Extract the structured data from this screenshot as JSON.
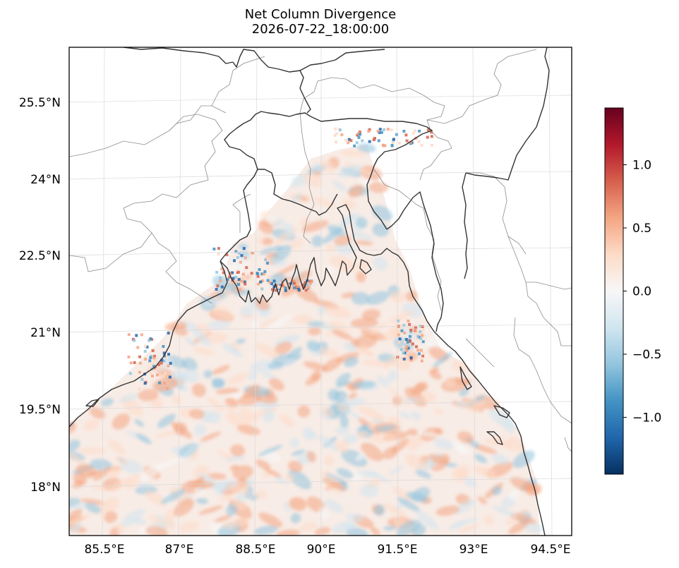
{
  "figure": {
    "title_line1": "Net Column Divergence",
    "title_line2": "2026-07-22_18:00:00"
  },
  "map": {
    "lon_ticks": [
      "85.5°E",
      "87°E",
      "88.5°E",
      "90°E",
      "91.5°E",
      "93°E",
      "94.5°E"
    ],
    "lat_ticks": [
      "25.5°N",
      "24°N",
      "22.5°N",
      "21°N",
      "19.5°N",
      "18°N"
    ],
    "gridlines": true
  },
  "colorbar": {
    "colormap": "RdBu_r",
    "range": [
      -1.45,
      1.45
    ],
    "ticks": [
      "1.0",
      "0.5",
      "0.0",
      "−0.5",
      "−1.0"
    ],
    "colors": [
      "#053061",
      "#2166ac",
      "#4393c3",
      "#92c5de",
      "#d1e5f0",
      "#f7f7f7",
      "#fddbc7",
      "#f4a582",
      "#d6604d",
      "#b2182b",
      "#67001f"
    ]
  }
}
